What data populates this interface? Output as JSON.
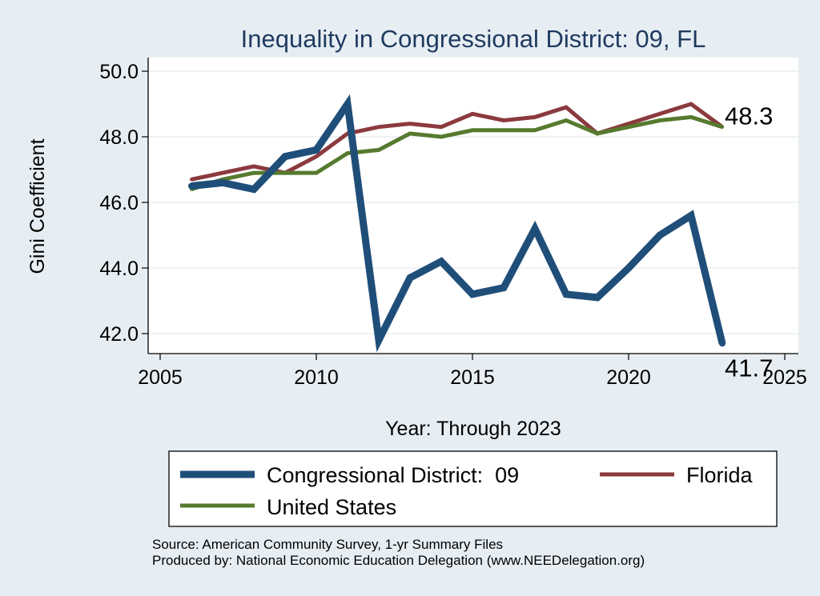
{
  "chart_data": {
    "type": "line",
    "title": "Inequality in Congressional District:  09, FL",
    "xlabel": "Year: Through 2023",
    "ylabel": "Gini Coefficient",
    "xlim": [
      2005,
      2025
    ],
    "ylim": [
      41.3,
      50.3
    ],
    "x_ticks": [
      2005,
      2010,
      2015,
      2020,
      2025
    ],
    "y_ticks": [
      42.0,
      44.0,
      46.0,
      48.0,
      50.0
    ],
    "y_tick_labels": [
      "42.0",
      "44.0",
      "46.0",
      "48.0",
      "50.0"
    ],
    "grid": true,
    "legend_position": "bottom",
    "x": [
      2006,
      2007,
      2008,
      2009,
      2010,
      2011,
      2012,
      2013,
      2014,
      2015,
      2016,
      2017,
      2018,
      2019,
      2020,
      2021,
      2022,
      2023
    ],
    "series": [
      {
        "name": "Congressional District:  09",
        "color": "#1f4e79",
        "width": "thick",
        "values": [
          46.5,
          46.6,
          46.4,
          47.4,
          47.6,
          49.0,
          41.8,
          43.7,
          44.2,
          43.2,
          43.4,
          45.2,
          43.2,
          43.1,
          44.0,
          45.0,
          45.6,
          41.7
        ],
        "end_label": "41.7"
      },
      {
        "name": "Florida",
        "color": "#8b3a3e",
        "width": "medium",
        "values": [
          46.7,
          46.9,
          47.1,
          46.9,
          47.4,
          48.1,
          48.3,
          48.4,
          48.3,
          48.7,
          48.5,
          48.6,
          48.9,
          48.1,
          48.4,
          48.7,
          49.0,
          48.3
        ],
        "end_label": "48.3"
      },
      {
        "name": "United States",
        "color": "#567a2e",
        "width": "medium",
        "values": [
          46.4,
          46.7,
          46.9,
          46.9,
          46.9,
          47.5,
          47.6,
          48.1,
          48.0,
          48.2,
          48.2,
          48.2,
          48.5,
          48.1,
          48.3,
          48.5,
          48.6,
          48.3
        ]
      }
    ]
  },
  "footer": {
    "source": "Source: American Community Survey, 1-yr Summary Files",
    "produced_by": "Produced by: National Economic Education Delegation (www.NEEDelegation.org)"
  }
}
